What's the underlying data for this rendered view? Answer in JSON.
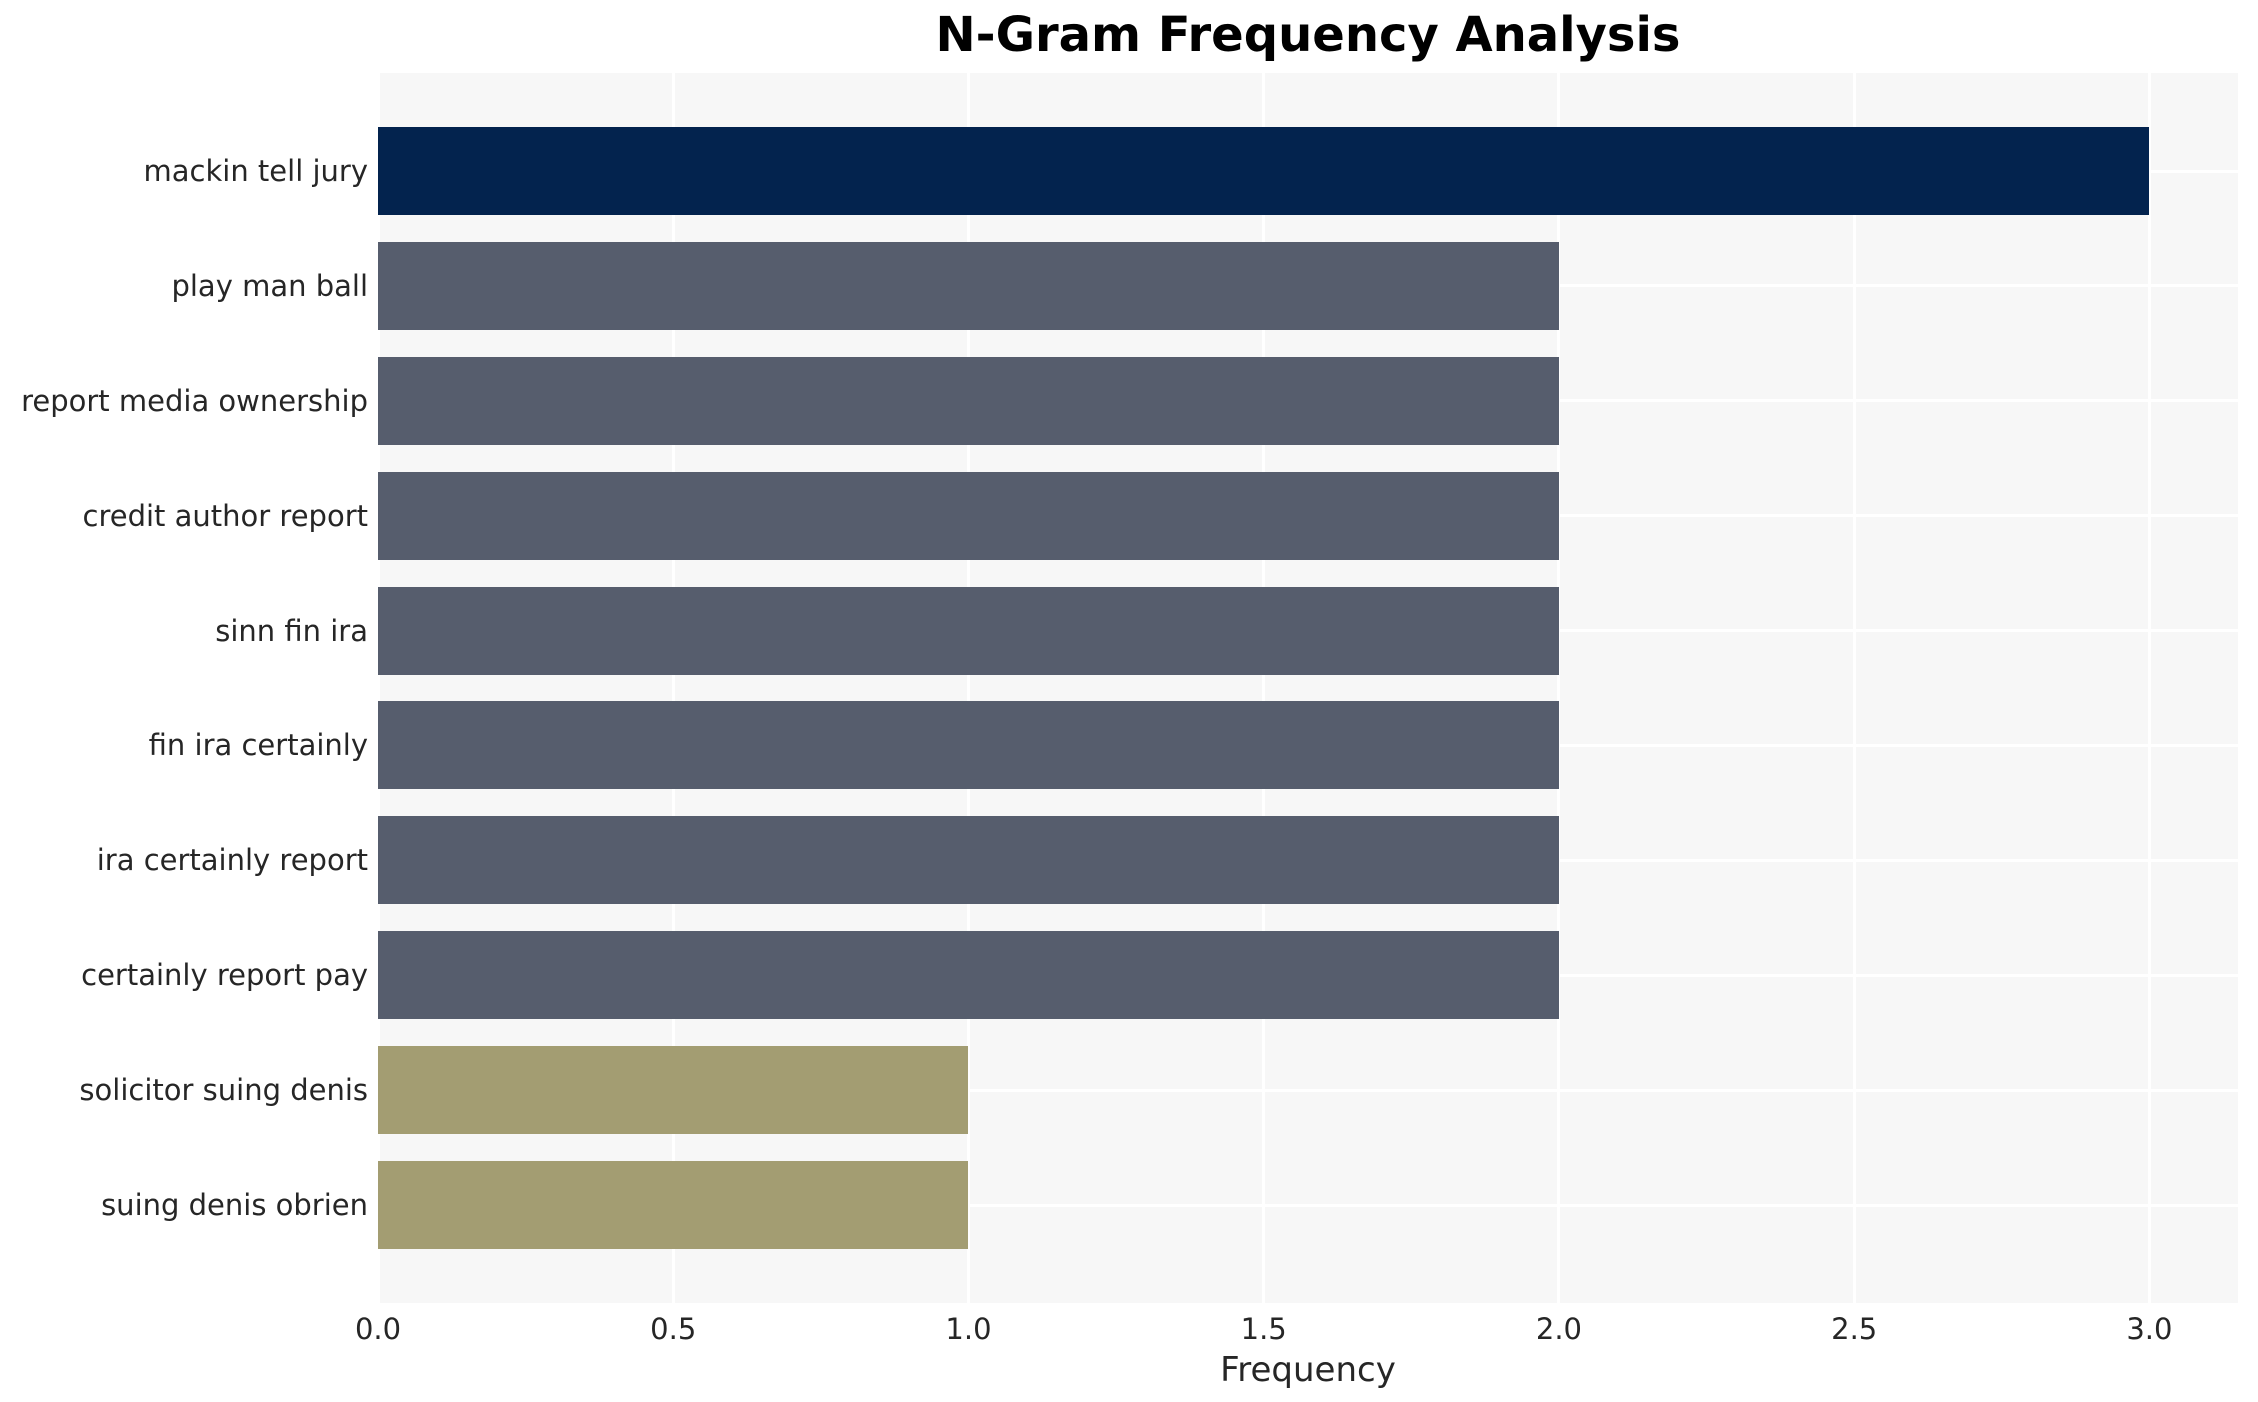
{
  "chart_data": {
    "type": "bar",
    "orientation": "horizontal",
    "title": "N-Gram Frequency Analysis",
    "xlabel": "Frequency",
    "ylabel": "",
    "categories": [
      "mackin tell jury",
      "play man ball",
      "report media ownership",
      "credit author report",
      "sinn fin ira",
      "fin ira certainly",
      "ira certainly report",
      "certainly report pay",
      "solicitor suing denis",
      "suing denis obrien"
    ],
    "values": [
      3,
      2,
      2,
      2,
      2,
      2,
      2,
      2,
      1,
      1
    ],
    "bar_colors": [
      "#03234e",
      "#565d6d",
      "#565d6d",
      "#565d6d",
      "#565d6d",
      "#565d6d",
      "#565d6d",
      "#565d6d",
      "#a39d72",
      "#a39d72"
    ],
    "xticks": [
      0.0,
      0.5,
      1.0,
      1.5,
      2.0,
      2.5,
      3.0
    ],
    "xtick_labels": [
      "0.0",
      "0.5",
      "1.0",
      "1.5",
      "2.0",
      "2.5",
      "3.0"
    ],
    "xlim": [
      0,
      3.15
    ],
    "grid": true,
    "legend_position": "none",
    "style": {
      "plot_background": "#f7f7f7",
      "grid_color": "#ffffff",
      "text_color": "#262626",
      "title_color": "#000000"
    }
  }
}
